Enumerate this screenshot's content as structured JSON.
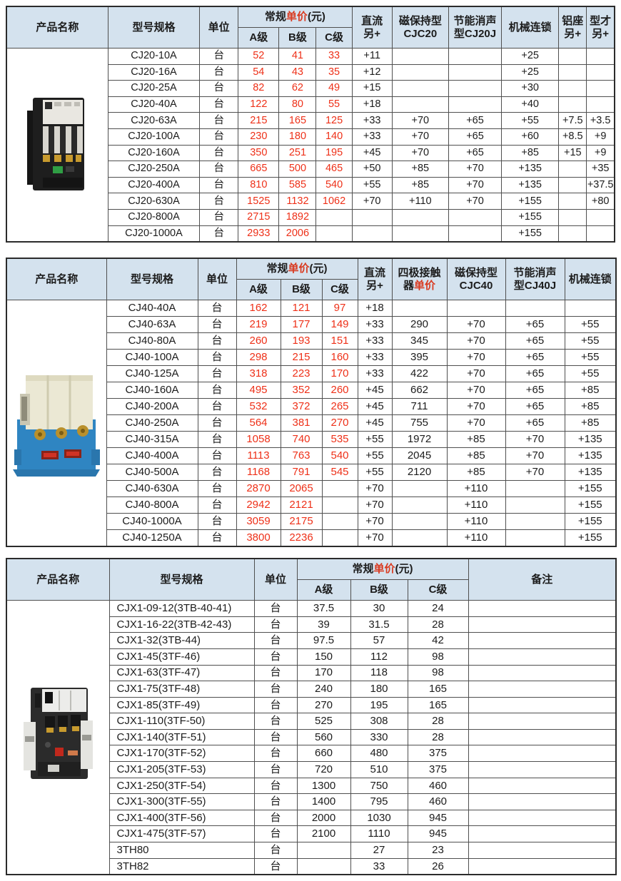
{
  "colors": {
    "header_bg": "#d4e2ee",
    "price_red": "#ee3018",
    "header_red": "#d93a20",
    "text": "#1c1c1c",
    "border": "#4f4f4f",
    "photo1_body": "#1c1c1c",
    "photo2_top": "#ebe8d4",
    "photo2_base": "#2f85c2",
    "photo3_body": "#2b2b2b"
  },
  "tables": [
    {
      "name": "CJ20 series price table",
      "product_image": "cj20-contactor-photo",
      "price_red": true,
      "header": {
        "product": "产品名称",
        "model": "型号规格",
        "unit": "单位",
        "price_pre": "常规",
        "price_red": "单价",
        "price_suf": "(元)",
        "grades": [
          "A级",
          "B级",
          "C级"
        ],
        "extras": [
          "直流\n另+",
          "磁保持型\nCJC20",
          "节能消声\n型CJ20J",
          "机械连锁",
          "铝座\n另+",
          "型才\n另+"
        ]
      },
      "rows": [
        {
          "model": "CJ20-10A",
          "unit": "台",
          "prices": [
            "52",
            "41",
            "33"
          ],
          "extras": [
            "+11",
            "",
            "",
            "+25",
            "",
            ""
          ]
        },
        {
          "model": "CJ20-16A",
          "unit": "台",
          "prices": [
            "54",
            "43",
            "35"
          ],
          "extras": [
            "+12",
            "",
            "",
            "+25",
            "",
            ""
          ]
        },
        {
          "model": "CJ20-25A",
          "unit": "台",
          "prices": [
            "82",
            "62",
            "49"
          ],
          "extras": [
            "+15",
            "",
            "",
            "+30",
            "",
            ""
          ]
        },
        {
          "model": "CJ20-40A",
          "unit": "台",
          "prices": [
            "122",
            "80",
            "55"
          ],
          "extras": [
            "+18",
            "",
            "",
            "+40",
            "",
            ""
          ]
        },
        {
          "model": "CJ20-63A",
          "unit": "台",
          "prices": [
            "215",
            "165",
            "125"
          ],
          "extras": [
            "+33",
            "+70",
            "+65",
            "+55",
            "+7.5",
            "+3.5"
          ]
        },
        {
          "model": "CJ20-100A",
          "unit": "台",
          "prices": [
            "230",
            "180",
            "140"
          ],
          "extras": [
            "+33",
            "+70",
            "+65",
            "+60",
            "+8.5",
            "+9"
          ]
        },
        {
          "model": "CJ20-160A",
          "unit": "台",
          "prices": [
            "350",
            "251",
            "195"
          ],
          "extras": [
            "+45",
            "+70",
            "+65",
            "+85",
            "+15",
            "+9"
          ]
        },
        {
          "model": "CJ20-250A",
          "unit": "台",
          "prices": [
            "665",
            "500",
            "465"
          ],
          "extras": [
            "+50",
            "+85",
            "+70",
            "+135",
            "",
            "+35"
          ]
        },
        {
          "model": "CJ20-400A",
          "unit": "台",
          "prices": [
            "810",
            "585",
            "540"
          ],
          "extras": [
            "+55",
            "+85",
            "+70",
            "+135",
            "",
            "+37.5"
          ]
        },
        {
          "model": "CJ20-630A",
          "unit": "台",
          "prices": [
            "1525",
            "1132",
            "1062"
          ],
          "extras": [
            "+70",
            "+110",
            "+70",
            "+155",
            "",
            "+80"
          ]
        },
        {
          "model": "CJ20-800A",
          "unit": "台",
          "prices": [
            "2715",
            "1892",
            ""
          ],
          "extras": [
            "",
            "",
            "",
            "+155",
            "",
            ""
          ]
        },
        {
          "model": "CJ20-1000A",
          "unit": "台",
          "prices": [
            "2933",
            "2006",
            ""
          ],
          "extras": [
            "",
            "",
            "",
            "+155",
            "",
            ""
          ]
        }
      ]
    },
    {
      "name": "CJ40 series price table",
      "product_image": "cj40-contactor-photo",
      "price_red": true,
      "header": {
        "product": "产品名称",
        "model": "型号规格",
        "unit": "单位",
        "price_pre": "常规",
        "price_red": "单价",
        "price_suf": "(元)",
        "grades": [
          "A级",
          "B级",
          "C级"
        ],
        "fourpole_pre": "四极接触\n器",
        "fourpole_red": "单价",
        "extras": [
          "直流\n另+",
          "磁保持型\nCJC40",
          "节能消声\n型CJ40J",
          "机械连锁"
        ]
      },
      "rows": [
        {
          "model": "CJ40-40A",
          "unit": "台",
          "prices": [
            "162",
            "121",
            "97"
          ],
          "extras": [
            "+18",
            "",
            "",
            "",
            ""
          ]
        },
        {
          "model": "CJ40-63A",
          "unit": "台",
          "prices": [
            "219",
            "177",
            "149"
          ],
          "extras": [
            "+33",
            "290",
            "+70",
            "+65",
            "+55"
          ]
        },
        {
          "model": "CJ40-80A",
          "unit": "台",
          "prices": [
            "260",
            "193",
            "151"
          ],
          "extras": [
            "+33",
            "345",
            "+70",
            "+65",
            "+55"
          ]
        },
        {
          "model": "CJ40-100A",
          "unit": "台",
          "prices": [
            "298",
            "215",
            "160"
          ],
          "extras": [
            "+33",
            "395",
            "+70",
            "+65",
            "+55"
          ]
        },
        {
          "model": "CJ40-125A",
          "unit": "台",
          "prices": [
            "318",
            "223",
            "170"
          ],
          "extras": [
            "+33",
            "422",
            "+70",
            "+65",
            "+55"
          ]
        },
        {
          "model": "CJ40-160A",
          "unit": "台",
          "prices": [
            "495",
            "352",
            "260"
          ],
          "extras": [
            "+45",
            "662",
            "+70",
            "+65",
            "+85"
          ]
        },
        {
          "model": "CJ40-200A",
          "unit": "台",
          "prices": [
            "532",
            "372",
            "265"
          ],
          "extras": [
            "+45",
            "711",
            "+70",
            "+65",
            "+85"
          ]
        },
        {
          "model": "CJ40-250A",
          "unit": "台",
          "prices": [
            "564",
            "381",
            "270"
          ],
          "extras": [
            "+45",
            "755",
            "+70",
            "+65",
            "+85"
          ]
        },
        {
          "model": "CJ40-315A",
          "unit": "台",
          "prices": [
            "1058",
            "740",
            "535"
          ],
          "extras": [
            "+55",
            "1972",
            "+85",
            "+70",
            "+135"
          ]
        },
        {
          "model": "CJ40-400A",
          "unit": "台",
          "prices": [
            "1113",
            "763",
            "540"
          ],
          "extras": [
            "+55",
            "2045",
            "+85",
            "+70",
            "+135"
          ]
        },
        {
          "model": "CJ40-500A",
          "unit": "台",
          "prices": [
            "1168",
            "791",
            "545"
          ],
          "extras": [
            "+55",
            "2120",
            "+85",
            "+70",
            "+135"
          ]
        },
        {
          "model": "CJ40-630A",
          "unit": "台",
          "prices": [
            "2870",
            "2065",
            ""
          ],
          "extras": [
            "+70",
            "",
            "+110",
            "",
            "+155"
          ]
        },
        {
          "model": "CJ40-800A",
          "unit": "台",
          "prices": [
            "2942",
            "2121",
            ""
          ],
          "extras": [
            "+70",
            "",
            "+110",
            "",
            "+155"
          ]
        },
        {
          "model": "CJ40-1000A",
          "unit": "台",
          "prices": [
            "3059",
            "2175",
            ""
          ],
          "extras": [
            "+70",
            "",
            "+110",
            "",
            "+155"
          ]
        },
        {
          "model": "CJ40-1250A",
          "unit": "台",
          "prices": [
            "3800",
            "2236",
            ""
          ],
          "extras": [
            "+70",
            "",
            "+110",
            "",
            "+155"
          ]
        }
      ]
    },
    {
      "name": "CJX1 series price table",
      "product_image": "cjx1-contactor-photo",
      "price_red": false,
      "header": {
        "product": "产品名称",
        "model": "型号规格",
        "unit": "单位",
        "price_pre": "常规",
        "price_red": "单价",
        "price_suf": "(元)",
        "grades": [
          "A级",
          "B级",
          "C级"
        ],
        "extras": [
          "备注"
        ]
      },
      "rows": [
        {
          "model": "CJX1-09-12(3TB-40-41)",
          "unit": "台",
          "prices": [
            "37.5",
            "30",
            "24"
          ],
          "extras": [
            ""
          ]
        },
        {
          "model": "CJX1-16-22(3TB-42-43)",
          "unit": "台",
          "prices": [
            "39",
            "31.5",
            "28"
          ],
          "extras": [
            ""
          ]
        },
        {
          "model": "CJX1-32(3TB-44)",
          "unit": "台",
          "prices": [
            "97.5",
            "57",
            "42"
          ],
          "extras": [
            ""
          ]
        },
        {
          "model": "CJX1-45(3TF-46)",
          "unit": "台",
          "prices": [
            "150",
            "112",
            "98"
          ],
          "extras": [
            ""
          ]
        },
        {
          "model": "CJX1-63(3TF-47)",
          "unit": "台",
          "prices": [
            "170",
            "118",
            "98"
          ],
          "extras": [
            ""
          ]
        },
        {
          "model": "CJX1-75(3TF-48)",
          "unit": "台",
          "prices": [
            "240",
            "180",
            "165"
          ],
          "extras": [
            ""
          ]
        },
        {
          "model": "CJX1-85(3TF-49)",
          "unit": "台",
          "prices": [
            "270",
            "195",
            "165"
          ],
          "extras": [
            ""
          ]
        },
        {
          "model": "CJX1-110(3TF-50)",
          "unit": "台",
          "prices": [
            "525",
            "308",
            "28"
          ],
          "extras": [
            ""
          ]
        },
        {
          "model": "CJX1-140(3TF-51)",
          "unit": "台",
          "prices": [
            "560",
            "330",
            "28"
          ],
          "extras": [
            ""
          ]
        },
        {
          "model": "CJX1-170(3TF-52)",
          "unit": "台",
          "prices": [
            "660",
            "480",
            "375"
          ],
          "extras": [
            ""
          ]
        },
        {
          "model": "CJX1-205(3TF-53)",
          "unit": "台",
          "prices": [
            "720",
            "510",
            "375"
          ],
          "extras": [
            ""
          ]
        },
        {
          "model": "CJX1-250(3TF-54)",
          "unit": "台",
          "prices": [
            "1300",
            "750",
            "460"
          ],
          "extras": [
            ""
          ]
        },
        {
          "model": "CJX1-300(3TF-55)",
          "unit": "台",
          "prices": [
            "1400",
            "795",
            "460"
          ],
          "extras": [
            ""
          ]
        },
        {
          "model": "CJX1-400(3TF-56)",
          "unit": "台",
          "prices": [
            "2000",
            "1030",
            "945"
          ],
          "extras": [
            ""
          ]
        },
        {
          "model": "CJX1-475(3TF-57)",
          "unit": "台",
          "prices": [
            "2100",
            "1110",
            "945"
          ],
          "extras": [
            ""
          ]
        },
        {
          "model": "3TH80",
          "unit": "台",
          "prices": [
            "",
            "27",
            "23"
          ],
          "extras": [
            ""
          ]
        },
        {
          "model": "3TH82",
          "unit": "台",
          "prices": [
            "",
            "33",
            "26"
          ],
          "extras": [
            ""
          ]
        }
      ]
    }
  ]
}
